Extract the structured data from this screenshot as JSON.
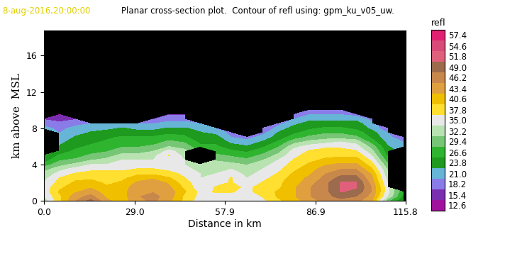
{
  "chart_data": {
    "type": "contour",
    "timestamp": "8-aug-2016,20:00:00",
    "title": "Planar cross-section plot.  Contour of refl using: gpm_ku_v05_uw.",
    "x_label": "Distance in km",
    "y_label": "km above  MSL",
    "colorbar_label": "refl",
    "xlim": [
      0,
      115.8
    ],
    "xticks": [
      0.0,
      29.0,
      57.9,
      86.9,
      115.8
    ],
    "ylim": [
      0,
      18.75
    ],
    "yticks": [
      0,
      4,
      8,
      12,
      16
    ],
    "colorbar_ticks": [
      12.6,
      15.4,
      18.2,
      21.0,
      23.8,
      26.6,
      29.4,
      32.2,
      35.0,
      37.8,
      40.6,
      43.4,
      46.2,
      49.0,
      51.8,
      54.6,
      57.4
    ],
    "colors": [
      "#a0129e",
      "#7a2fb0",
      "#8a7ce8",
      "#66b4d6",
      "#1e9a1e",
      "#2fb42f",
      "#76c676",
      "#b8e2b0",
      "#e8e8e8",
      "#ffe030",
      "#f0c000",
      "#e0a040",
      "#c8884c",
      "#9c6a4c",
      "#e0607c",
      "#d84a78",
      "#e02070"
    ],
    "x": [
      0,
      5,
      10,
      15,
      20,
      25,
      30,
      35,
      40,
      45,
      50,
      55,
      60,
      65,
      70,
      75,
      80,
      85,
      90,
      95,
      100,
      105,
      110,
      115
    ],
    "y": [
      0,
      0.5,
      1,
      1.5,
      2,
      2.5,
      3,
      3.5,
      4,
      4.5,
      5,
      5.5,
      6,
      6.5,
      7,
      7.5,
      8,
      8.5,
      9,
      9.5,
      10
    ],
    "values": [
      [
        33,
        35,
        36,
        36,
        35,
        34,
        33,
        31,
        28,
        25,
        24,
        null,
        null,
        null,
        null,
        null,
        22,
        20,
        18,
        null,
        null
      ],
      [
        40,
        40,
        41,
        40,
        39,
        38,
        36,
        34,
        31,
        29,
        27,
        25,
        24,
        23,
        22,
        21,
        20,
        19,
        17,
        15,
        null
      ],
      [
        46,
        45,
        43,
        42,
        41,
        40,
        38,
        36,
        33,
        30,
        28,
        27,
        26,
        25,
        24,
        23,
        22,
        20,
        18,
        null,
        null
      ],
      [
        50,
        47,
        45,
        43,
        42,
        40,
        39,
        37,
        35,
        32,
        30,
        28,
        27,
        26,
        25,
        24,
        23,
        21,
        null,
        null,
        null
      ],
      [
        44,
        43,
        42,
        41,
        40,
        40,
        39,
        37,
        35,
        33,
        31,
        29,
        28,
        27,
        26,
        25,
        23,
        22,
        null,
        null,
        null
      ],
      [
        42,
        42,
        42,
        42,
        41,
        40,
        39,
        37,
        36,
        35,
        33,
        31,
        29,
        28,
        27,
        25,
        24,
        22,
        null,
        null,
        null
      ],
      [
        45,
        46,
        46,
        45,
        44,
        42,
        40,
        38,
        36,
        35,
        33,
        31,
        29,
        28,
        27,
        25,
        23,
        21,
        null,
        null,
        null
      ],
      [
        47,
        47,
        46,
        46,
        45,
        43,
        40,
        38,
        36,
        35,
        34,
        32,
        30,
        28,
        27,
        25,
        23,
        21,
        18,
        null,
        null
      ],
      [
        44,
        45,
        45,
        44,
        43,
        41,
        39,
        37,
        36,
        36,
        38,
        36,
        32,
        30,
        28,
        26,
        24,
        22,
        20,
        18,
        null
      ],
      [
        40,
        40,
        41,
        40,
        39,
        38,
        37,
        36,
        35,
        35,
        34,
        33,
        31,
        29,
        27,
        26,
        24,
        22,
        20,
        18,
        null
      ],
      [
        36,
        37,
        37,
        36,
        36,
        35,
        35,
        34,
        33,
        null,
        null,
        null,
        27,
        26,
        25,
        24,
        23,
        21,
        null,
        null,
        null
      ],
      [
        36,
        37,
        38,
        38,
        37,
        36,
        35,
        34,
        33,
        32,
        30,
        28,
        27,
        26,
        25,
        23,
        21,
        null,
        null,
        null,
        null
      ],
      [
        35,
        37,
        38,
        39,
        38,
        38,
        37,
        35,
        33,
        31,
        29,
        27,
        25,
        23,
        21,
        20,
        null,
        null,
        null,
        null,
        null
      ],
      [
        36,
        36,
        37,
        37,
        36,
        35,
        34,
        33,
        32,
        30,
        28,
        26,
        24,
        22,
        20,
        null,
        null,
        null,
        null,
        null,
        null
      ],
      [
        37,
        38,
        39,
        39,
        38,
        37,
        36,
        35,
        34,
        32,
        30,
        28,
        26,
        24,
        22,
        20,
        18,
        null,
        null,
        null,
        null
      ],
      [
        40,
        41,
        41,
        40,
        40,
        39,
        38,
        37,
        36,
        35,
        33,
        31,
        29,
        27,
        25,
        24,
        22,
        20,
        null,
        null,
        null
      ],
      [
        42,
        43,
        43,
        43,
        42,
        42,
        41,
        40,
        39,
        38,
        37,
        36,
        34,
        31,
        28,
        26,
        25,
        23,
        21,
        19,
        null
      ],
      [
        45,
        46,
        46,
        46,
        45,
        44,
        43,
        42,
        41,
        40,
        39,
        38,
        36,
        33,
        30,
        28,
        26,
        25,
        23,
        21,
        18
      ],
      [
        47,
        48,
        48,
        48,
        48,
        47,
        46,
        45,
        43,
        41,
        40,
        39,
        37,
        34,
        31,
        29,
        27,
        25,
        23,
        21,
        19
      ],
      [
        48,
        50,
        52,
        52,
        52,
        50,
        48,
        46,
        44,
        42,
        40,
        39,
        37,
        35,
        31,
        29,
        27,
        25,
        23,
        21,
        18
      ],
      [
        47,
        49,
        51,
        52,
        52,
        50,
        48,
        46,
        44,
        42,
        40,
        38,
        36,
        34,
        30,
        28,
        26,
        25,
        23,
        20,
        null
      ],
      [
        44,
        45,
        46,
        46,
        45,
        44,
        43,
        41,
        39,
        37,
        35,
        33,
        31,
        28,
        26,
        25,
        23,
        22,
        20,
        null,
        null
      ],
      [
        30,
        35,
        36,
        36,
        35,
        34,
        33,
        32,
        30,
        28,
        26,
        25,
        24,
        23,
        22,
        21,
        19,
        null,
        null,
        null,
        null
      ],
      [
        24,
        26,
        27,
        null,
        null,
        null,
        null,
        null,
        null,
        null,
        null,
        null,
        22,
        21,
        19,
        null,
        null,
        null,
        null,
        null,
        null
      ]
    ]
  }
}
